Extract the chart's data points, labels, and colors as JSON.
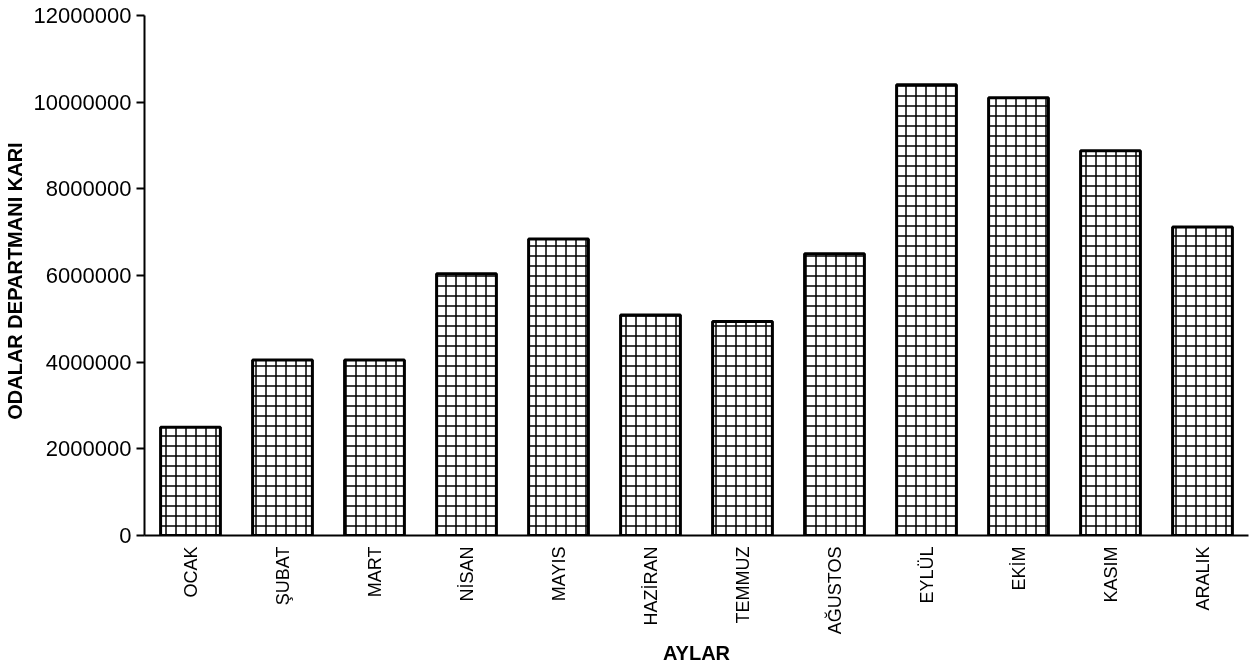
{
  "chart_data": {
    "type": "bar",
    "xlabel": "AYLAR",
    "ylabel": "ODALAR  DEPARTMANI  KARI",
    "categories": [
      "OCAK",
      "ŞUBAT",
      "MART",
      "NİSAN",
      "MAYIS",
      "HAZİRAN",
      "TEMMUZ",
      "AĞUSTOS",
      "EYLÜL",
      "EKİM",
      "KASIM",
      "ARALIK"
    ],
    "values": [
      2500000,
      4050000,
      4050000,
      6040000,
      6840000,
      5090000,
      4940000,
      6500000,
      10400000,
      10100000,
      8880000,
      7120000
    ],
    "color": "#000000",
    "ylim": [
      0,
      12000000
    ],
    "yticks": [
      0,
      2000000,
      4000000,
      6000000,
      8000000,
      10000000,
      12000000
    ],
    "grid": false
  }
}
